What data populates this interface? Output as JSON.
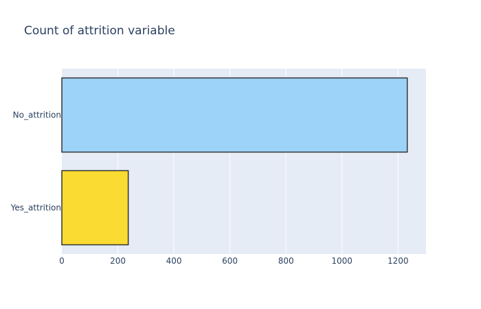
{
  "chart_data": {
    "type": "bar",
    "orientation": "horizontal",
    "title": "Count of attrition variable",
    "xlabel": "",
    "ylabel": "",
    "categories": [
      "No_attrition",
      "Yes_attrition"
    ],
    "values": [
      1233,
      237
    ],
    "bar_colors": [
      "#9dd3f8",
      "#fadb31"
    ],
    "bar_outline_color": "#333333",
    "plot_background": "#e5ecf6",
    "grid_color": "#ffffff",
    "grid": true,
    "legend": "none",
    "xlim": [
      0,
      1300
    ],
    "xticks": [
      0,
      200,
      400,
      600,
      800,
      1000,
      1200
    ],
    "xtick_labels": [
      "0",
      "200",
      "400",
      "600",
      "800",
      "1000",
      "1200"
    ]
  }
}
